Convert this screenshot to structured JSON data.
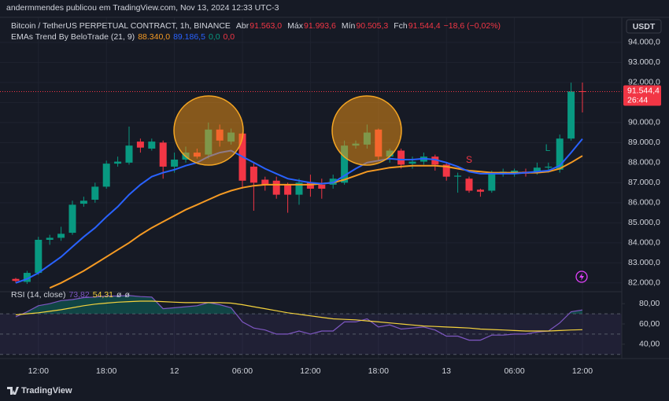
{
  "chart_data": {
    "type": "candlestick",
    "header": "andermmendes publicou em TradingView.com, Nov 13, 2024 12:33 UTC-3",
    "symbol": "Bitcoin / TetherUS PERPETUAL CONTRACT, 1h, BINANCE",
    "ohlc_legend": [
      {
        "label": "Abr",
        "value": "91.563,0"
      },
      {
        "label": "Máx",
        "value": "91.993,6"
      },
      {
        "label": "Mín",
        "value": "90.505,3"
      },
      {
        "label": "Fch",
        "value": "91.544,4"
      }
    ],
    "change": "−18,6 (−0,02%)",
    "ema_legend": {
      "title": "EMAs Trend By BeloTrade (21, 9)",
      "values": [
        "88.340,0",
        "89.186,5",
        "0,0",
        "0,0"
      ]
    },
    "currency": "USDT",
    "brand": "TradingView",
    "signals": [
      "S",
      "L"
    ],
    "up_color": "#089981",
    "down_color": "#f23645",
    "categories": [
      null,
      null,
      "12:00",
      null,
      null,
      null,
      null,
      null,
      "18:00",
      null,
      null,
      null,
      null,
      null,
      "12",
      null,
      null,
      null,
      null,
      null,
      "06:00",
      null,
      null,
      null,
      null,
      null,
      "12:00",
      null,
      null,
      null,
      null,
      null,
      "18:00",
      null,
      null,
      null,
      null,
      null,
      "13",
      null,
      null,
      null,
      null,
      null,
      "06:00",
      null,
      null,
      null,
      null,
      null,
      "12:00"
    ],
    "open": [
      82200,
      82050,
      82500,
      84150,
      84250,
      84500,
      85950,
      86150,
      86800,
      87950,
      88000,
      89050,
      88700,
      89000,
      87800,
      88150,
      88500,
      88400,
      89650,
      89050,
      89450,
      87800,
      87150,
      87100,
      86900,
      86400,
      87000,
      86900,
      86900,
      87000,
      88850,
      88900,
      89650,
      88300,
      88600,
      87950,
      88050,
      88300,
      87900,
      87300,
      87200,
      86650,
      86600,
      87450,
      87450,
      87550,
      87550,
      87750,
      87650,
      89200,
      91563
    ],
    "high": [
      82250,
      82600,
      84300,
      84400,
      84800,
      86100,
      86300,
      87000,
      88100,
      88300,
      89800,
      89200,
      89200,
      89100,
      88500,
      88800,
      88700,
      90000,
      89900,
      89700,
      89500,
      88000,
      87300,
      87300,
      87000,
      87200,
      87400,
      87200,
      87400,
      89100,
      89100,
      89900,
      89700,
      88700,
      88700,
      88300,
      88500,
      88400,
      88000,
      87500,
      87300,
      86700,
      87600,
      87700,
      87700,
      87700,
      88000,
      88000,
      89400,
      91990,
      91993.6
    ],
    "low": [
      82000,
      81950,
      82400,
      83900,
      84100,
      84400,
      85800,
      86000,
      86700,
      87800,
      87900,
      88500,
      88600,
      87200,
      87500,
      88000,
      88200,
      88200,
      88800,
      88900,
      86700,
      85600,
      86600,
      86200,
      85500,
      85900,
      86300,
      86200,
      86700,
      86900,
      88700,
      88700,
      88100,
      88000,
      87700,
      87700,
      87900,
      87600,
      87100,
      86500,
      86500,
      86300,
      86500,
      87300,
      87300,
      87300,
      87400,
      87500,
      87500,
      89100,
      90505.3
    ],
    "close": [
      82100,
      82500,
      84150,
      84250,
      84450,
      85900,
      86100,
      86800,
      87950,
      88050,
      88850,
      88750,
      89050,
      87800,
      88150,
      88500,
      88300,
      89650,
      89100,
      89500,
      87100,
      87000,
      86900,
      86400,
      86400,
      87000,
      86700,
      86700,
      87200,
      88850,
      88950,
      89500,
      88300,
      88600,
      87900,
      88050,
      88300,
      87900,
      87300,
      87350,
      86600,
      86550,
      87450,
      87550,
      87600,
      87450,
      87750,
      87800,
      89200,
      91550,
      91544.4
    ],
    "series": [
      {
        "color": "#f59a23",
        "values": [
          null,
          null,
          null,
          81750,
          82000,
          82300,
          82600,
          82950,
          83300,
          83650,
          84000,
          84400,
          84750,
          85050,
          85350,
          85650,
          85900,
          86150,
          86400,
          86600,
          86750,
          86850,
          86900,
          86900,
          86900,
          86900,
          86900,
          86950,
          87000,
          87150,
          87350,
          87550,
          87650,
          87750,
          87800,
          87850,
          87850,
          87850,
          87800,
          87700,
          87600,
          87550,
          87500,
          87500,
          87500,
          87500,
          87500,
          87550,
          87700,
          88000,
          88340
        ]
      },
      {
        "color": "#2962ff",
        "values": [
          82000,
          82200,
          82500,
          82900,
          83300,
          83800,
          84300,
          84750,
          85300,
          85800,
          86400,
          86900,
          87300,
          87500,
          87650,
          87850,
          88000,
          88300,
          88500,
          88600,
          88300,
          88000,
          87700,
          87450,
          87200,
          87100,
          87000,
          86950,
          87000,
          87350,
          87700,
          88000,
          88100,
          88200,
          88150,
          88150,
          88200,
          88150,
          88000,
          87800,
          87550,
          87450,
          87450,
          87450,
          87450,
          87500,
          87550,
          87600,
          87850,
          88500,
          89186.5
        ]
      }
    ],
    "price_label": {
      "value": 91544.4,
      "label": "91.544,4"
    },
    "countdown": "26:44",
    "ylim": [
      81600,
      95250
    ],
    "yticks": [
      {
        "value": 82000,
        "label": "82.000,0"
      },
      {
        "value": 83000,
        "label": "83.000,0"
      },
      {
        "value": 84000,
        "label": "84.000,0"
      },
      {
        "value": 85000,
        "label": "85.000,0"
      },
      {
        "value": 86000,
        "label": "86.000,0"
      },
      {
        "value": 87000,
        "label": "87.000,0"
      },
      {
        "value": 88000,
        "label": "88.000,0"
      },
      {
        "value": 89000,
        "label": "89.000,0"
      },
      {
        "value": 90000,
        "label": "90.000,0"
      },
      {
        "value": 91000,
        "label": "91.000,0"
      },
      {
        "value": 92000,
        "label": "92.000,0"
      },
      {
        "value": 93000,
        "label": "93.000,0"
      },
      {
        "value": 94000,
        "label": "94.000,0"
      }
    ],
    "grid": true,
    "rsi": {
      "title": "RSI (14, close)",
      "legend": [
        "73,82",
        "54,31",
        "ø",
        "ø"
      ],
      "color": "#7e57c2",
      "ma_color": "#f5d33d",
      "values": [
        67,
        72,
        78,
        80,
        83,
        84,
        86,
        86.5,
        87.5,
        87.5,
        88,
        87,
        86.5,
        75,
        76,
        77,
        78,
        81,
        79,
        76,
        62,
        56,
        54,
        50,
        50,
        53,
        50,
        53,
        53,
        62,
        62,
        65,
        57,
        59,
        55,
        56,
        57,
        54,
        48,
        48,
        44,
        44,
        49,
        49,
        50,
        50,
        52,
        53,
        61,
        72,
        73.82
      ],
      "ma": [
        69,
        70,
        71,
        72.5,
        74,
        76,
        78,
        79.5,
        80.5,
        81.5,
        82,
        82.5,
        82.5,
        82,
        81.5,
        81,
        81,
        81,
        81,
        80.5,
        79,
        77,
        75,
        73,
        71,
        69.5,
        68,
        66.5,
        65,
        64.5,
        64,
        63,
        62,
        61,
        60,
        59,
        58,
        57.5,
        57,
        56.5,
        56,
        55,
        54.5,
        54,
        53.5,
        53,
        53,
        53,
        53.5,
        54,
        54.31
      ],
      "levels": [
        70,
        50,
        30
      ],
      "ylim": [
        29,
        91
      ],
      "yticks": [
        {
          "value": 80,
          "label": "80,00"
        },
        {
          "value": 60,
          "label": "60,00"
        },
        {
          "value": 40,
          "label": "40,00"
        }
      ]
    }
  }
}
